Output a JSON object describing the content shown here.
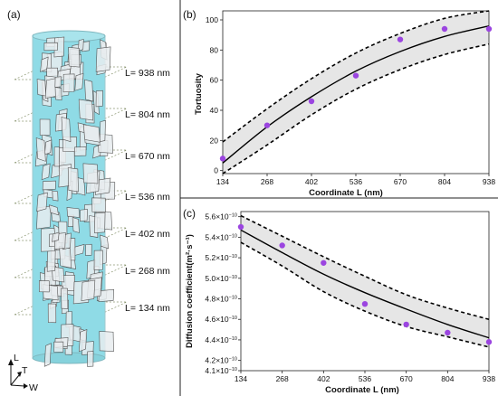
{
  "panels": {
    "a": "(a)",
    "b": "(b)",
    "c": "(c)"
  },
  "cylinder": {
    "fill_color": "#8fdbe6",
    "slice_labels": [
      "L= 938 nm",
      "L= 804 nm",
      "L= 670 nm",
      "L= 536 nm",
      "L= 402 nm",
      "L= 268 nm",
      "L= 134 nm"
    ],
    "axes": [
      "L",
      "T",
      "W"
    ]
  },
  "chart_data": [
    {
      "type": "scatter",
      "panel": "b",
      "x": [
        134,
        268,
        402,
        536,
        670,
        804,
        938
      ],
      "y": [
        8,
        30,
        46,
        63,
        87,
        94,
        94
      ],
      "fit": [
        5,
        29,
        49,
        66,
        79,
        89,
        96
      ],
      "upper_band": [
        19,
        41,
        61,
        78,
        91,
        101,
        107
      ],
      "lower_band": [
        -9,
        17,
        37,
        54,
        67,
        77,
        84
      ],
      "xlabel": "Coordinate L (nm)",
      "ylabel": "Tortuosity",
      "xticks": [
        "134",
        "268",
        "402",
        "536",
        "670",
        "804",
        "938"
      ],
      "yticks": [
        "0",
        "20",
        "40",
        "60",
        "80",
        "100"
      ],
      "xlim": [
        134,
        938
      ],
      "ylim": [
        -2,
        106
      ],
      "point_color": "#9b45e0"
    },
    {
      "type": "scatter",
      "panel": "c",
      "x": [
        134,
        268,
        402,
        536,
        670,
        804,
        938
      ],
      "y": [
        5.5,
        5.32,
        5.15,
        4.75,
        4.55,
        4.47,
        4.38
      ],
      "fit": [
        5.47,
        5.25,
        5.04,
        4.86,
        4.7,
        4.55,
        4.42
      ],
      "upper_band": [
        5.61,
        5.41,
        5.21,
        5.02,
        4.84,
        4.71,
        4.6
      ],
      "lower_band": [
        5.35,
        5.12,
        4.87,
        4.68,
        4.53,
        4.43,
        4.33
      ],
      "xlabel": "Coordinate L (nm)",
      "ylabel": "Diffusion coefficient(m²·s⁻¹)",
      "xticks": [
        "134",
        "268",
        "402",
        "536",
        "670",
        "804",
        "938"
      ],
      "ytick_mantissas": [
        "4.1",
        "4.2",
        "4.4",
        "4.6",
        "4.8",
        "5.0",
        "5.2",
        "5.4",
        "5.6"
      ],
      "ytick_values": [
        4.1,
        4.2,
        4.4,
        4.6,
        4.8,
        5.0,
        5.2,
        5.4,
        5.6
      ],
      "ytick_suffix": "×10",
      "ytick_exponent": "−10",
      "xlim": [
        134,
        938
      ],
      "ylim": [
        4.1,
        5.65
      ],
      "point_color": "#9b45e0"
    }
  ]
}
